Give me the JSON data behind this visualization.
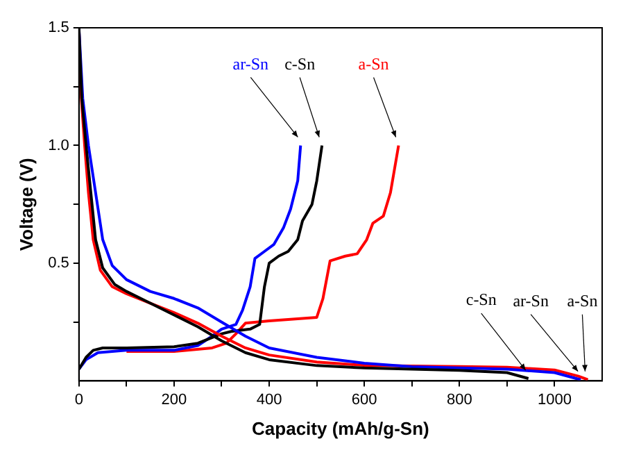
{
  "chart_data": {
    "type": "line",
    "xlabel": "Capacity (mAh/g-Sn)",
    "ylabel": "Voltage (V)",
    "xlim": [
      0,
      1100
    ],
    "xticks": [
      0,
      {
        "value": 100,
        "label": null
      },
      200,
      {
        "value": 300,
        "label": null
      },
      400,
      {
        "value": 500,
        "label": null
      },
      600,
      {
        "value": 700,
        "label": null
      },
      800,
      {
        "value": 900,
        "label": null
      },
      1000
    ],
    "ylim": [
      0,
      1.5
    ],
    "yticks": [
      {
        "value": 0.25,
        "label": null
      },
      0.5,
      {
        "value": 0.75,
        "label": null
      },
      {
        "value": 1,
        "label": "1.0"
      },
      {
        "value": 1.25,
        "label": null
      },
      1.5
    ],
    "annotations": [
      {
        "text": "c-Sn",
        "x": 945,
        "y": 0.01
      },
      {
        "text": "ar-Sn",
        "x": 1055,
        "y": 0.005
      },
      {
        "text": "a-Sn",
        "x": 1070,
        "y": 0.005
      }
    ],
    "grid": false,
    "legend": false,
    "marker": "none",
    "line_style": "solid",
    "series": [
      {
        "color": "#000000",
        "x": [
          0,
          6,
          15,
          25,
          35,
          50,
          75,
          100,
          150,
          200,
          250,
          300,
          350,
          400,
          500,
          600,
          700,
          800,
          900,
          945
        ],
        "values": [
          1.5,
          1.2,
          1.0,
          0.8,
          0.6,
          0.48,
          0.41,
          0.38,
          0.33,
          0.28,
          0.23,
          0.17,
          0.12,
          0.09,
          0.065,
          0.055,
          0.05,
          0.045,
          0.035,
          0.01
        ]
      },
      {
        "color": "#0000ff",
        "x": [
          0,
          8,
          20,
          35,
          50,
          70,
          100,
          150,
          200,
          250,
          300,
          350,
          400,
          500,
          600,
          700,
          800,
          900,
          1000,
          1055
        ],
        "values": [
          1.5,
          1.2,
          1.0,
          0.8,
          0.6,
          0.49,
          0.43,
          0.38,
          0.35,
          0.31,
          0.25,
          0.19,
          0.14,
          0.1,
          0.075,
          0.06,
          0.055,
          0.05,
          0.035,
          0.005
        ]
      },
      {
        "color": "#ff0000",
        "x": [
          0,
          5,
          12,
          20,
          30,
          45,
          70,
          100,
          150,
          200,
          250,
          300,
          350,
          400,
          500,
          600,
          700,
          800,
          900,
          1000,
          1050,
          1070
        ],
        "values": [
          1.5,
          1.2,
          1.0,
          0.8,
          0.6,
          0.47,
          0.4,
          0.37,
          0.33,
          0.29,
          0.245,
          0.19,
          0.14,
          0.11,
          0.08,
          0.066,
          0.063,
          0.061,
          0.058,
          0.046,
          0.02,
          0.005
        ]
      },
      {
        "name": "c-Sn",
        "color": "#000000",
        "x": [
          0,
          15,
          30,
          50,
          100,
          200,
          250,
          300,
          320,
          360,
          380,
          390,
          400,
          420,
          440,
          460,
          470,
          490,
          500,
          511
        ],
        "values": [
          0.05,
          0.1,
          0.13,
          0.14,
          0.14,
          0.145,
          0.16,
          0.2,
          0.21,
          0.22,
          0.24,
          0.4,
          0.5,
          0.53,
          0.55,
          0.6,
          0.68,
          0.75,
          0.85,
          1.0
        ]
      },
      {
        "name": "ar-Sn",
        "color": "#0000ff",
        "x": [
          0,
          15,
          40,
          100,
          200,
          250,
          280,
          300,
          330,
          344,
          360,
          370,
          390,
          410,
          430,
          445,
          460,
          466
        ],
        "values": [
          0.05,
          0.09,
          0.12,
          0.13,
          0.13,
          0.15,
          0.19,
          0.22,
          0.24,
          0.3,
          0.4,
          0.52,
          0.55,
          0.58,
          0.65,
          0.73,
          0.85,
          1.0
        ]
      },
      {
        "name": "a-Sn",
        "color": "#ff0000",
        "x": [
          100,
          200,
          280,
          310,
          330,
          350,
          400,
          500,
          513,
          528,
          560,
          585,
          605,
          618,
          640,
          655,
          672
        ],
        "values": [
          0.125,
          0.125,
          0.14,
          0.16,
          0.2,
          0.245,
          0.255,
          0.27,
          0.35,
          0.51,
          0.53,
          0.54,
          0.6,
          0.67,
          0.7,
          0.8,
          1.0
        ]
      }
    ]
  }
}
